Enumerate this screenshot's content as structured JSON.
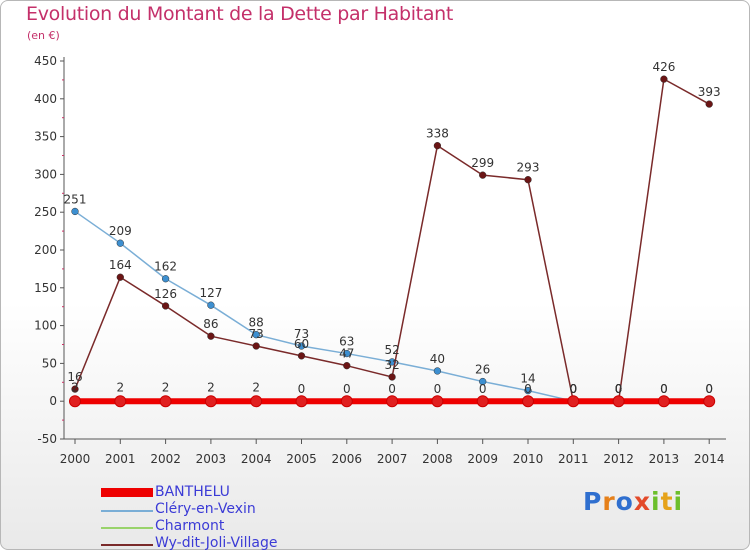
{
  "header": {
    "title": "Evolution du Montant de la Dette par Habitant",
    "unit": "(en €)"
  },
  "logo": {
    "letters": [
      "P",
      "r",
      "o",
      "x",
      "i",
      "t",
      "i"
    ],
    "colors": [
      "#2f6fcf",
      "#e6801a",
      "#2f6fcf",
      "#e34a2a",
      "#6cbf2b",
      "#e6a31a",
      "#6cbf2b"
    ]
  },
  "chart_data": {
    "type": "line",
    "title": "Evolution du Montant de la Dette par Habitant",
    "ylabel": "(en €)",
    "x": [
      2000,
      2001,
      2002,
      2003,
      2004,
      2005,
      2006,
      2007,
      2008,
      2009,
      2010,
      2011,
      2012,
      2013,
      2014
    ],
    "x_tick_labels": [
      "2000",
      "2001",
      "2002",
      "2003",
      "2004",
      "2005",
      "2006",
      "2007",
      "2008",
      "2009",
      "2010",
      "2011",
      "2012",
      "2013",
      "2014"
    ],
    "ylim": [
      -50,
      450
    ],
    "y_ticks": [
      -50,
      0,
      50,
      100,
      150,
      200,
      250,
      300,
      350,
      400,
      450
    ],
    "y_tick_labels": [
      "-50",
      "0",
      "50",
      "100",
      "150",
      "200",
      "250",
      "300",
      "350",
      "400",
      "450"
    ],
    "grid": false,
    "legend_position": "bottom-left",
    "series": [
      {
        "name": "BANTHELU",
        "color": "#ee0000",
        "marker_color": "#e02020",
        "values": [
          0,
          0,
          0,
          0,
          0,
          0,
          0,
          0,
          0,
          0,
          0,
          0,
          0,
          0,
          0
        ],
        "labels": [
          "",
          "",
          "",
          "",
          "",
          "",
          "",
          "",
          "",
          "",
          "",
          "",
          "",
          "",
          ""
        ]
      },
      {
        "name": "Cléry-en-Vexin",
        "color": "#7aaed6",
        "marker_color": "#3d8fd0",
        "values": [
          251,
          209,
          162,
          127,
          88,
          73,
          63,
          52,
          40,
          26,
          14,
          0,
          0,
          0,
          0
        ],
        "labels": [
          "251",
          "209",
          "162",
          "127",
          "88",
          "73",
          "63",
          "52",
          "40",
          "26",
          "14",
          "0",
          "0",
          "0",
          "0"
        ]
      },
      {
        "name": "Charmont",
        "color": "#99d36b",
        "marker_color": "#7ec83f",
        "values": [
          2,
          2,
          2,
          2,
          2,
          0,
          0,
          0,
          0,
          0,
          0,
          0,
          0,
          0,
          0
        ],
        "labels": [
          "2",
          "2",
          "2",
          "2",
          "2",
          "0",
          "0",
          "0",
          "0",
          "0",
          "0",
          "0",
          "0",
          "0",
          "0"
        ]
      },
      {
        "name": "Wy-dit-Joli-Village",
        "color": "#7a2a2a",
        "marker_color": "#6b1515",
        "values": [
          16,
          164,
          126,
          86,
          73,
          60,
          47,
          32,
          338,
          299,
          293,
          0,
          0,
          426,
          393
        ],
        "labels": [
          "16",
          "164",
          "126",
          "86",
          "73",
          "60",
          "47",
          "32",
          "338",
          "299",
          "293",
          "0",
          "0",
          "426",
          "393"
        ]
      }
    ]
  }
}
